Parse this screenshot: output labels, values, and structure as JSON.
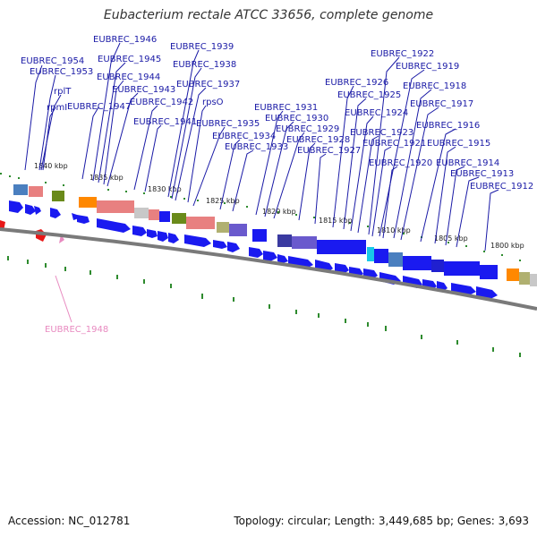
{
  "title": "Eubacterium rectale ATCC 33656, complete genome",
  "footer": {
    "accession": "Accession: NC_012781",
    "stats": "Topology: circular; Length: 3,449,685 bp; Genes: 3,693"
  },
  "colors": {
    "gene_label": "#1a1aa6",
    "pink_label": "#e88ac0",
    "forward": "#1a1af0",
    "backbone": "#7a7a7a",
    "tick": "#2e8b2e",
    "red": "#e81818"
  },
  "scale_ticks": [
    {
      "label": "1840 kbp"
    },
    {
      "label": "1835 kbp"
    },
    {
      "label": "1830 kbp"
    },
    {
      "label": "1825 kbp"
    },
    {
      "label": "1820 kbp"
    },
    {
      "label": "1815 kbp"
    },
    {
      "label": "1810 kbp"
    },
    {
      "label": "1805 kbp"
    },
    {
      "label": "1800 kbp"
    }
  ],
  "gene_labels": [
    "EUBREC_1954",
    "EUBREC_1953",
    "rplT",
    "rpmI",
    "EUBREC_1947",
    "EUBREC_1946",
    "EUBREC_1945",
    "EUBREC_1944",
    "EUBREC_1943",
    "EUBREC_1942",
    "EUBREC_1941",
    "EUBREC_1939",
    "EUBREC_1938",
    "EUBREC_1937",
    "rpsO",
    "EUBREC_1935",
    "EUBREC_1934",
    "EUBREC_1933",
    "EUBREC_1931",
    "EUBREC_1930",
    "EUBREC_1929",
    "EUBREC_1928",
    "EUBREC_1927",
    "EUBREC_1926",
    "EUBREC_1925",
    "EUBREC_1924",
    "EUBREC_1923",
    "EUBREC_1922",
    "EUBREC_1919",
    "EUBREC_1918",
    "EUBREC_1917",
    "EUBREC_1921",
    "EUBREC_1920",
    "EUBREC_1916",
    "EUBREC_1915",
    "EUBREC_1914",
    "EUBREC_1913",
    "EUBREC_1912"
  ],
  "pink_label": "EUBREC_1948"
}
